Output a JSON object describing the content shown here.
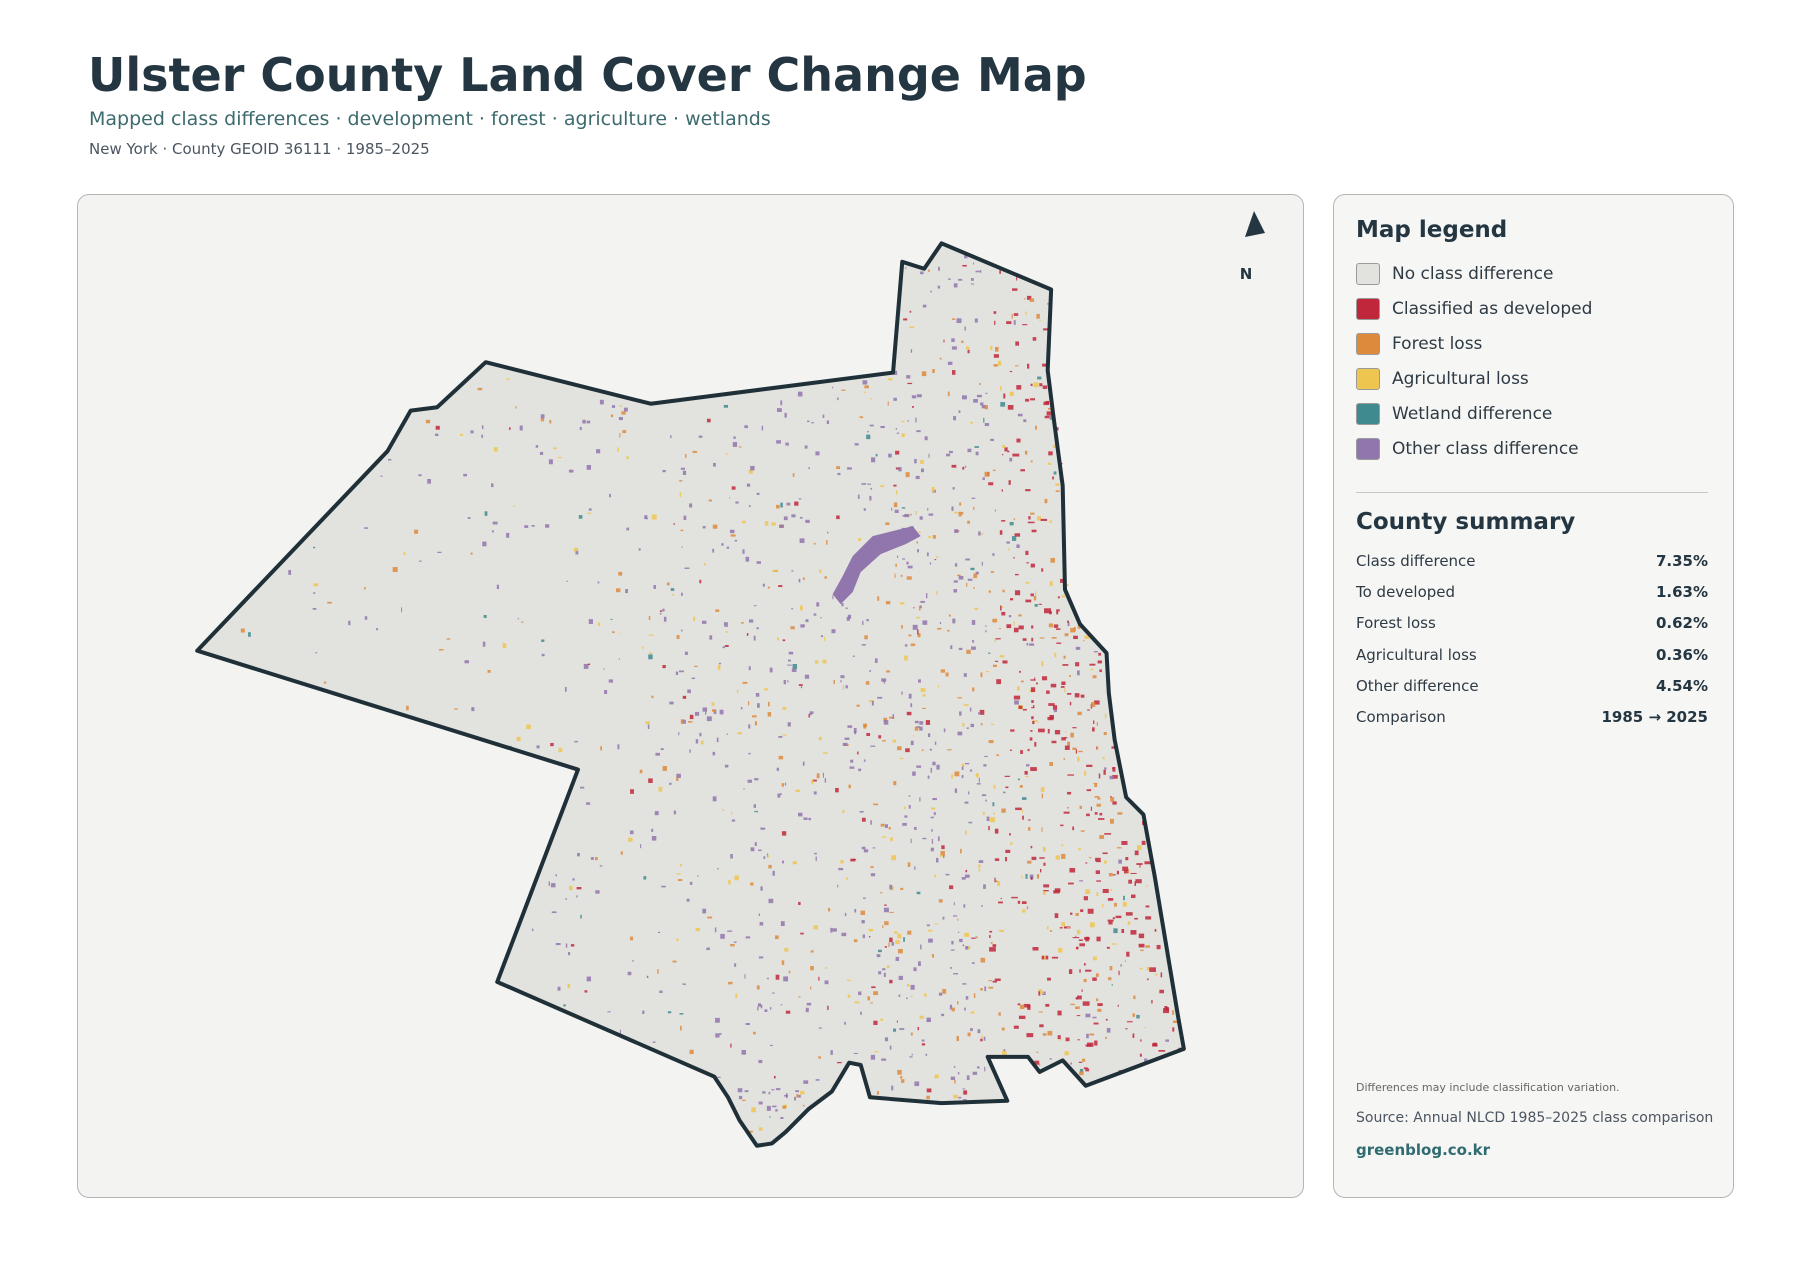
{
  "header": {
    "title": "Ulster County Land Cover Change Map",
    "subtitle": "Mapped class differences · development · forest · agriculture · wetlands",
    "meta": "New York · County GEOID 36111 · 1985–2025"
  },
  "map": {
    "north_label": "N"
  },
  "legend": {
    "title": "Map legend",
    "items": [
      {
        "label": "No class difference",
        "color": "#e2e2df"
      },
      {
        "label": "Classified as developed",
        "color": "#c0273a"
      },
      {
        "label": "Forest loss",
        "color": "#dd8a3c"
      },
      {
        "label": "Agricultural loss",
        "color": "#eec54f"
      },
      {
        "label": "Wetland difference",
        "color": "#3f8a8e"
      },
      {
        "label": "Other class difference",
        "color": "#9176ad"
      }
    ]
  },
  "summary": {
    "title": "County summary",
    "rows": [
      [
        "Class difference",
        "7.35%"
      ],
      [
        "To developed",
        "1.63%"
      ],
      [
        "Forest loss",
        "0.62%"
      ],
      [
        "Agricultural loss",
        "0.36%"
      ],
      [
        "Other difference",
        "4.54%"
      ],
      [
        "Comparison",
        "1985 → 2025"
      ]
    ]
  },
  "footer": {
    "note": "Differences may include classification variation.",
    "source": "Source: Annual NLCD 1985–2025 class comparison",
    "site": "greenblog.co.kr"
  }
}
